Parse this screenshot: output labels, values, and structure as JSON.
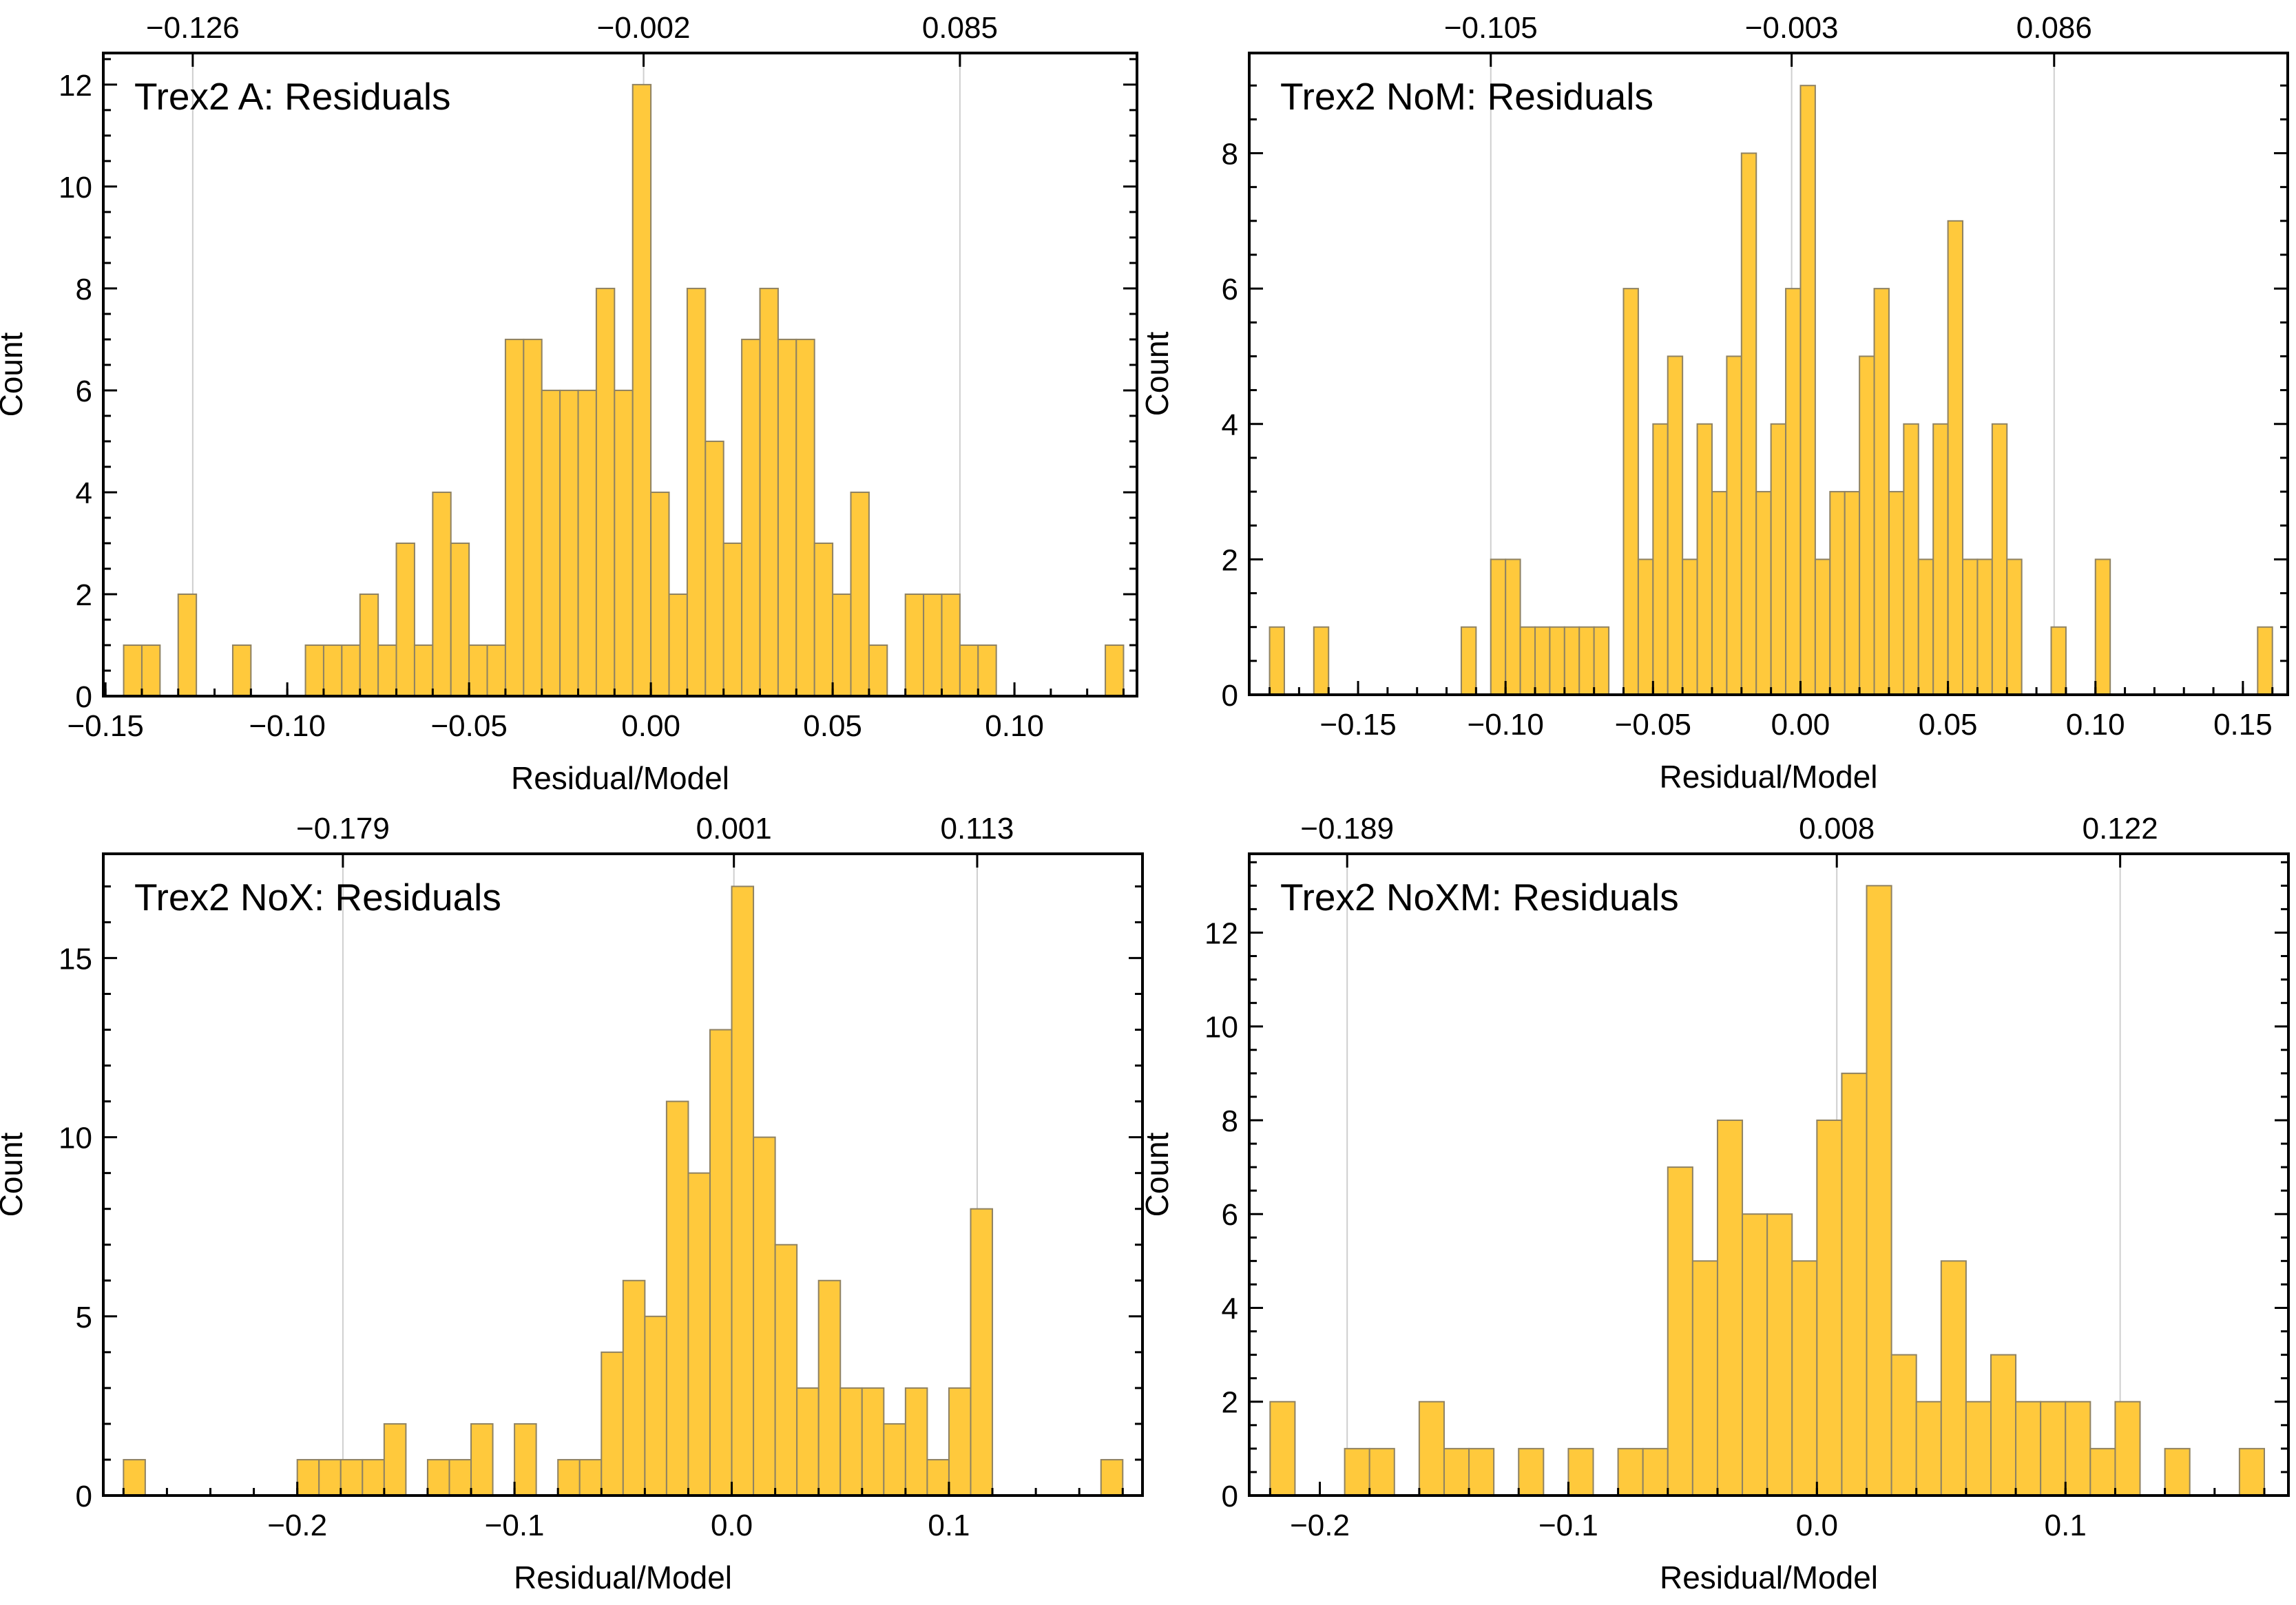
{
  "chart_data": [
    {
      "type": "bar",
      "title": "Trex2 A: Residuals",
      "xlabel": "Residual/Model",
      "ylabel": "Count",
      "bin_width": 0.005,
      "xlim": [
        -0.1506,
        0.1337
      ],
      "ylim": [
        0,
        12.62
      ],
      "x_ticks": [
        -0.15,
        -0.1,
        -0.05,
        0.0,
        0.05,
        0.1
      ],
      "x_tick_labels": [
        "−0.15",
        "−0.10",
        "−0.05",
        "0.00",
        "0.05",
        "0.10"
      ],
      "x_minor_step": 0.01,
      "y_ticks": [
        0,
        2,
        4,
        6,
        8,
        10,
        12
      ],
      "y_minor_step": 0.5,
      "top_markers": [
        -0.126,
        -0.002,
        0.085
      ],
      "top_marker_labels": [
        "−0.126",
        "−0.002",
        "0.085"
      ],
      "bins": [
        [
          -0.145,
          1
        ],
        [
          -0.14,
          1
        ],
        [
          -0.13,
          2
        ],
        [
          -0.115,
          1
        ],
        [
          -0.095,
          1
        ],
        [
          -0.09,
          1
        ],
        [
          -0.085,
          1
        ],
        [
          -0.08,
          2
        ],
        [
          -0.075,
          1
        ],
        [
          -0.07,
          3
        ],
        [
          -0.065,
          1
        ],
        [
          -0.06,
          4
        ],
        [
          -0.055,
          3
        ],
        [
          -0.05,
          1
        ],
        [
          -0.045,
          1
        ],
        [
          -0.04,
          7
        ],
        [
          -0.035,
          7
        ],
        [
          -0.03,
          6
        ],
        [
          -0.025,
          6
        ],
        [
          -0.02,
          6
        ],
        [
          -0.015,
          8
        ],
        [
          -0.01,
          6
        ],
        [
          -0.005,
          12
        ],
        [
          0.0,
          4
        ],
        [
          0.005,
          2
        ],
        [
          0.01,
          8
        ],
        [
          0.015,
          5
        ],
        [
          0.02,
          3
        ],
        [
          0.025,
          7
        ],
        [
          0.03,
          8
        ],
        [
          0.035,
          7
        ],
        [
          0.04,
          7
        ],
        [
          0.045,
          3
        ],
        [
          0.05,
          2
        ],
        [
          0.055,
          4
        ],
        [
          0.06,
          1
        ],
        [
          0.07,
          2
        ],
        [
          0.075,
          2
        ],
        [
          0.08,
          2
        ],
        [
          0.085,
          1
        ],
        [
          0.09,
          1
        ],
        [
          0.125,
          1
        ]
      ]
    },
    {
      "type": "bar",
      "title": "Trex2 NoM: Residuals",
      "xlabel": "Residual/Model",
      "ylabel": "Count",
      "bin_width": 0.005,
      "xlim": [
        -0.1869,
        0.1652
      ],
      "ylim": [
        0,
        9.48
      ],
      "x_ticks": [
        -0.15,
        -0.1,
        -0.05,
        0.0,
        0.05,
        0.1,
        0.15
      ],
      "x_tick_labels": [
        "−0.15",
        "−0.10",
        "−0.05",
        "0.00",
        "0.05",
        "0.10",
        "0.15"
      ],
      "x_minor_step": 0.01,
      "y_ticks": [
        0,
        2,
        4,
        6,
        8
      ],
      "y_minor_step": 0.5,
      "top_markers": [
        -0.105,
        -0.003,
        0.086
      ],
      "top_marker_labels": [
        "−0.105",
        "−0.003",
        "0.086"
      ],
      "bins": [
        [
          -0.18,
          1
        ],
        [
          -0.165,
          1
        ],
        [
          -0.115,
          1
        ],
        [
          -0.105,
          2
        ],
        [
          -0.1,
          2
        ],
        [
          -0.095,
          1
        ],
        [
          -0.09,
          1
        ],
        [
          -0.085,
          1
        ],
        [
          -0.08,
          1
        ],
        [
          -0.075,
          1
        ],
        [
          -0.07,
          1
        ],
        [
          -0.06,
          6
        ],
        [
          -0.055,
          2
        ],
        [
          -0.05,
          4
        ],
        [
          -0.045,
          5
        ],
        [
          -0.04,
          2
        ],
        [
          -0.035,
          4
        ],
        [
          -0.03,
          3
        ],
        [
          -0.025,
          5
        ],
        [
          -0.02,
          8
        ],
        [
          -0.015,
          3
        ],
        [
          -0.01,
          4
        ],
        [
          -0.005,
          6
        ],
        [
          0.0,
          9
        ],
        [
          0.005,
          2
        ],
        [
          0.01,
          3
        ],
        [
          0.015,
          3
        ],
        [
          0.02,
          5
        ],
        [
          0.025,
          6
        ],
        [
          0.03,
          3
        ],
        [
          0.035,
          4
        ],
        [
          0.04,
          2
        ],
        [
          0.045,
          4
        ],
        [
          0.05,
          7
        ],
        [
          0.055,
          2
        ],
        [
          0.06,
          2
        ],
        [
          0.065,
          4
        ],
        [
          0.07,
          2
        ],
        [
          0.085,
          1
        ],
        [
          0.1,
          2
        ],
        [
          0.155,
          1
        ]
      ]
    },
    {
      "type": "bar",
      "title": "Trex2 NoX: Residuals",
      "xlabel": "Residual/Model",
      "ylabel": "Count",
      "bin_width": 0.01,
      "xlim": [
        -0.2893,
        0.1891
      ],
      "ylim": [
        0,
        17.91
      ],
      "x_ticks": [
        -0.2,
        -0.1,
        0.0,
        0.1
      ],
      "x_tick_labels": [
        "−0.2",
        "−0.1",
        "0.0",
        "0.1"
      ],
      "x_minor_step": 0.02,
      "y_ticks": [
        0,
        5,
        10,
        15
      ],
      "y_minor_step": 1,
      "top_markers": [
        -0.179,
        0.001,
        0.113
      ],
      "top_marker_labels": [
        "−0.179",
        "0.001",
        "0.113"
      ],
      "bins": [
        [
          -0.28,
          1
        ],
        [
          -0.2,
          1
        ],
        [
          -0.19,
          1
        ],
        [
          -0.18,
          1
        ],
        [
          -0.17,
          1
        ],
        [
          -0.16,
          2
        ],
        [
          -0.14,
          1
        ],
        [
          -0.13,
          1
        ],
        [
          -0.12,
          2
        ],
        [
          -0.1,
          2
        ],
        [
          -0.08,
          1
        ],
        [
          -0.07,
          1
        ],
        [
          -0.06,
          4
        ],
        [
          -0.05,
          6
        ],
        [
          -0.04,
          5
        ],
        [
          -0.03,
          11
        ],
        [
          -0.02,
          9
        ],
        [
          -0.01,
          13
        ],
        [
          0.0,
          17
        ],
        [
          0.01,
          10
        ],
        [
          0.02,
          7
        ],
        [
          0.03,
          3
        ],
        [
          0.04,
          6
        ],
        [
          0.05,
          3
        ],
        [
          0.06,
          3
        ],
        [
          0.07,
          2
        ],
        [
          0.08,
          3
        ],
        [
          0.09,
          1
        ],
        [
          0.1,
          3
        ],
        [
          0.11,
          8
        ],
        [
          0.17,
          1
        ]
      ]
    },
    {
      "type": "bar",
      "title": "Trex2 NoXM: Residuals",
      "xlabel": "Residual/Model",
      "ylabel": "Count",
      "bin_width": 0.01,
      "xlim": [
        -0.2284,
        0.1897
      ],
      "ylim": [
        0,
        13.68
      ],
      "x_ticks": [
        -0.2,
        -0.1,
        0.0,
        0.1
      ],
      "x_tick_labels": [
        "−0.2",
        "−0.1",
        "0.0",
        "0.1"
      ],
      "x_minor_step": 0.02,
      "y_ticks": [
        0,
        2,
        4,
        6,
        8,
        10,
        12
      ],
      "y_minor_step": 0.5,
      "top_markers": [
        -0.189,
        0.008,
        0.122
      ],
      "top_marker_labels": [
        "−0.189",
        "0.008",
        "0.122"
      ],
      "bins": [
        [
          -0.22,
          2
        ],
        [
          -0.19,
          1
        ],
        [
          -0.18,
          1
        ],
        [
          -0.16,
          2
        ],
        [
          -0.15,
          1
        ],
        [
          -0.14,
          1
        ],
        [
          -0.12,
          1
        ],
        [
          -0.1,
          1
        ],
        [
          -0.08,
          1
        ],
        [
          -0.07,
          1
        ],
        [
          -0.06,
          7
        ],
        [
          -0.05,
          5
        ],
        [
          -0.04,
          8
        ],
        [
          -0.03,
          6
        ],
        [
          -0.02,
          6
        ],
        [
          -0.01,
          5
        ],
        [
          0.0,
          8
        ],
        [
          0.01,
          9
        ],
        [
          0.02,
          13
        ],
        [
          0.03,
          3
        ],
        [
          0.04,
          2
        ],
        [
          0.05,
          5
        ],
        [
          0.06,
          2
        ],
        [
          0.07,
          3
        ],
        [
          0.08,
          2
        ],
        [
          0.09,
          2
        ],
        [
          0.1,
          2
        ],
        [
          0.11,
          1
        ],
        [
          0.12,
          2
        ],
        [
          0.14,
          1
        ],
        [
          0.17,
          1
        ]
      ]
    }
  ],
  "colors": {
    "bar_fill": "#FFC93C",
    "bar_edge": "#8f8262",
    "marker_line": "#cfcfcf",
    "axis": "#000000"
  }
}
